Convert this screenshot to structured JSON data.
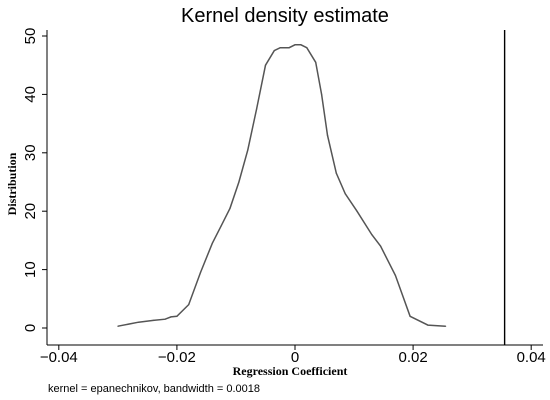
{
  "chart_data": {
    "type": "line",
    "title": "Kernel density estimate",
    "xlabel": "Regression Coefficient",
    "ylabel": "Distribution",
    "note": "kernel = epanechnikov, bandwidth = 0.0018",
    "xlim": [
      -0.042,
      0.042
    ],
    "ylim": [
      0,
      50
    ],
    "x_ticks": [
      -0.04,
      -0.02,
      0,
      0.02,
      0.04
    ],
    "x_tick_labels": [
      "−0.04",
      "−0.02",
      "0",
      "0.02",
      "0.04"
    ],
    "y_ticks": [
      0,
      10,
      20,
      30,
      40,
      50
    ],
    "y_tick_labels": [
      "0",
      "10",
      "20",
      "30",
      "40",
      "50"
    ],
    "grid": false,
    "reference_line_x": 0.0355,
    "series": [
      {
        "x": [
          -0.03,
          -0.0265,
          -0.024,
          -0.022,
          -0.021,
          -0.02,
          -0.018,
          -0.016,
          -0.014,
          -0.0125,
          -0.011,
          -0.0095,
          -0.008,
          -0.0065,
          -0.005,
          -0.0035,
          -0.0025,
          -0.001,
          0.0,
          0.001,
          0.002,
          0.0035,
          0.0045,
          0.0055,
          0.007,
          0.0085,
          0.0105,
          0.013,
          0.0145,
          0.017,
          0.0195,
          0.0225,
          0.0255
        ],
        "y": [
          0.3,
          1.0,
          1.3,
          1.5,
          1.9,
          2.0,
          4.0,
          9.5,
          14.5,
          17.5,
          20.5,
          25.0,
          30.5,
          37.5,
          45.0,
          47.5,
          48.0,
          48.0,
          48.5,
          48.5,
          48.0,
          45.5,
          40.0,
          33.0,
          26.5,
          23.0,
          20.0,
          16.0,
          14.0,
          9.0,
          2.0,
          0.5,
          0.3
        ]
      }
    ]
  }
}
